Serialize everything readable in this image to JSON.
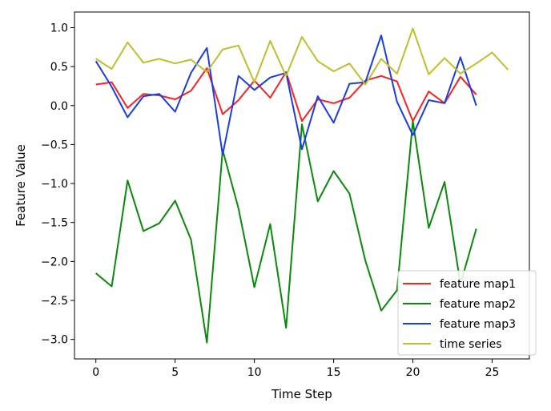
{
  "chart_data": {
    "type": "line",
    "title": "",
    "xlabel": "Time Step",
    "ylabel": "Feature Value",
    "xlim": [
      -1.35,
      27.35
    ],
    "ylim": [
      -3.25,
      1.2
    ],
    "xticks": [
      0,
      5,
      10,
      15,
      20,
      25
    ],
    "yticks": [
      1.0,
      0.5,
      0.0,
      -0.5,
      -1.0,
      -1.5,
      -2.0,
      -2.5,
      -3.0
    ],
    "xtick_labels": [
      "0",
      "5",
      "10",
      "15",
      "20",
      "25"
    ],
    "ytick_labels": [
      "1.0",
      "0.5",
      "0.0",
      "−0.5",
      "−1.0",
      "−1.5",
      "−2.0",
      "−2.5",
      "−3.0"
    ],
    "grid": false,
    "legend_position": "lower-right",
    "series": [
      {
        "name": "feature map1",
        "color": "#ff2020",
        "x": [
          0,
          1,
          2,
          3,
          4,
          5,
          6,
          7,
          8,
          9,
          10,
          11,
          12,
          13,
          14,
          15,
          16,
          17,
          18,
          19,
          20,
          21,
          22,
          23,
          24
        ],
        "values": [
          0.27,
          0.3,
          -0.03,
          0.15,
          0.13,
          0.08,
          0.19,
          0.48,
          -0.11,
          0.07,
          0.32,
          0.1,
          0.43,
          -0.2,
          0.08,
          0.03,
          0.1,
          0.32,
          0.38,
          0.31,
          -0.2,
          0.18,
          0.03,
          0.37,
          0.14
        ]
      },
      {
        "name": "feature map2",
        "color": "#0a8a0a",
        "x": [
          0,
          1,
          2,
          3,
          4,
          5,
          6,
          7,
          8,
          9,
          10,
          11,
          12,
          13,
          14,
          15,
          16,
          17,
          18,
          19,
          20,
          21,
          22,
          23,
          24
        ],
        "values": [
          -2.15,
          -2.32,
          -0.96,
          -1.61,
          -1.51,
          -1.22,
          -1.72,
          -3.04,
          -0.57,
          -1.32,
          -2.33,
          -1.52,
          -2.85,
          -0.24,
          -1.23,
          -0.84,
          -1.13,
          -1.99,
          -2.63,
          -2.37,
          -0.2,
          -1.57,
          -0.98,
          -2.29,
          -1.58
        ]
      },
      {
        "name": "feature map3",
        "color": "#1a3be8",
        "x": [
          0,
          1,
          2,
          3,
          4,
          5,
          6,
          7,
          8,
          9,
          10,
          11,
          12,
          13,
          14,
          15,
          16,
          17,
          18,
          19,
          20,
          21,
          22,
          23,
          24
        ],
        "values": [
          0.57,
          0.24,
          -0.15,
          0.12,
          0.15,
          -0.08,
          0.42,
          0.74,
          -0.63,
          0.38,
          0.2,
          0.36,
          0.42,
          -0.56,
          0.12,
          -0.22,
          0.28,
          0.3,
          0.9,
          0.05,
          -0.38,
          0.07,
          0.03,
          0.62,
          0.0
        ]
      },
      {
        "name": "time series",
        "color": "#bfbf2a",
        "x": [
          0,
          1,
          2,
          3,
          4,
          5,
          6,
          7,
          8,
          9,
          10,
          11,
          12,
          13,
          14,
          15,
          16,
          17,
          18,
          19,
          20,
          21,
          22,
          23,
          24,
          25,
          26
        ],
        "values": [
          0.6,
          0.47,
          0.81,
          0.55,
          0.6,
          0.54,
          0.59,
          0.43,
          0.72,
          0.77,
          0.3,
          0.83,
          0.38,
          0.88,
          0.57,
          0.44,
          0.54,
          0.27,
          0.6,
          0.41,
          0.99,
          0.4,
          0.61,
          0.41,
          0.54,
          0.68,
          0.46
        ]
      }
    ]
  }
}
